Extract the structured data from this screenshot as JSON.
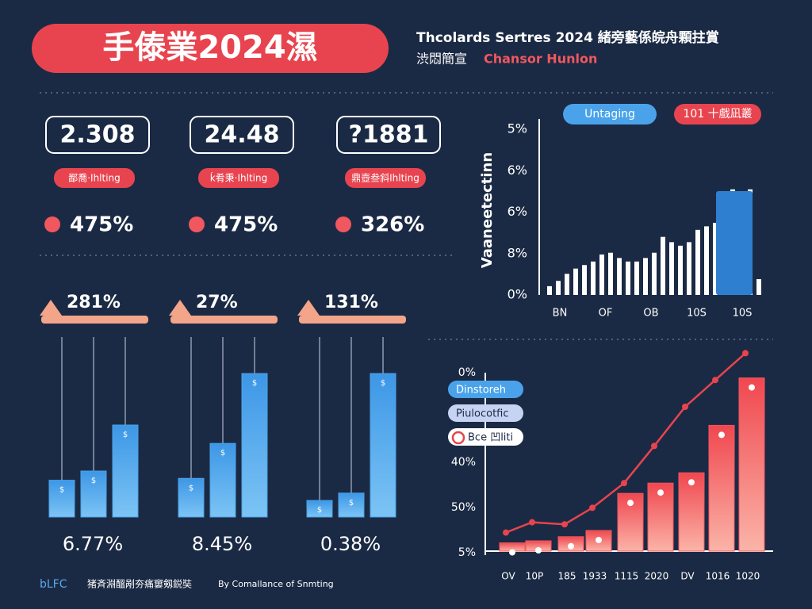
{
  "header": {
    "title": "手傣業2024濕",
    "subtitle": "Thcolards Sertres 2024 緒旁藝係皖舟顆拄賞",
    "subtitle_lead": "渋悶簡宣",
    "subtitle_highlight": "Chansor Hunlon"
  },
  "kpis": [
    {
      "value": "2.308",
      "tag": "鄙喬·Ihlting",
      "change": "475%"
    },
    {
      "value": "24.48",
      "tag": "ḱ肴秉·Ihlting",
      "change": "475%"
    },
    {
      "value": "?1881",
      "tag": "鼎壺叁斜Ihlting",
      "change": "326%"
    }
  ],
  "chart_data": [
    {
      "type": "mini-bar",
      "title": "281%",
      "note": "6.77%",
      "bar_symbol": "$",
      "values": [
        20,
        25,
        50
      ],
      "ylim": [
        0,
        100
      ],
      "color": "#4aa3ea"
    },
    {
      "type": "mini-bar",
      "title": "27%",
      "note": "8.45%",
      "bar_symbol": "$",
      "values": [
        21,
        40,
        78
      ],
      "ylim": [
        0,
        100
      ],
      "color": "#4aa3ea"
    },
    {
      "type": "mini-bar",
      "title": "131%",
      "note": "0.38%",
      "bar_symbol": "$",
      "values": [
        9,
        13,
        78
      ],
      "ylim": [
        0,
        100
      ],
      "color": "#4aa3ea"
    },
    {
      "type": "spark-bar",
      "y_title": "Vaaneetectinn",
      "y_labels": [
        "5%",
        "6%",
        "6%",
        "8%",
        "0%"
      ],
      "x_labels": [
        "BN",
        "OF",
        "OB",
        "10S",
        "10S"
      ],
      "legend": [
        {
          "name": "Untaging",
          "color": "#4aa3ea"
        },
        {
          "name": "101 十戲凪叢",
          "color": "#e8444f"
        }
      ],
      "values": [
        5,
        8,
        12,
        15,
        17,
        19,
        23,
        24,
        21,
        19,
        19,
        21,
        24,
        33,
        30,
        28,
        30,
        37,
        39,
        41,
        55,
        60,
        55,
        60,
        9
      ],
      "block_value": 59,
      "block_color": "#2f7fd0",
      "ylim": [
        0,
        100
      ],
      "color": "#ffffff"
    },
    {
      "type": "combo",
      "y_labels": [
        "0%",
        "40%",
        "50%",
        "5%"
      ],
      "categories": [
        "OV",
        "10P",
        "185",
        "1933",
        "1115",
        "2020",
        "DV",
        "1016",
        "1020"
      ],
      "legend": [
        "Dinstoreh",
        "Piulocotfic",
        "Bce 凹liti"
      ],
      "series": [
        {
          "type": "bar",
          "color": "#f0575f",
          "values": [
            4,
            5,
            7,
            10,
            28,
            33,
            38,
            61,
            84
          ]
        },
        {
          "type": "line",
          "color": "#e8444f",
          "values": [
            9,
            14,
            13,
            21,
            33,
            51,
            70,
            83,
            96
          ]
        }
      ],
      "ylim": [
        0,
        100
      ]
    }
  ],
  "footer": {
    "logo": "bLFC",
    "text": "猪斉淵醞剐夯痛窶剱鋭奘",
    "credit": "By Comallance of Snmting"
  }
}
